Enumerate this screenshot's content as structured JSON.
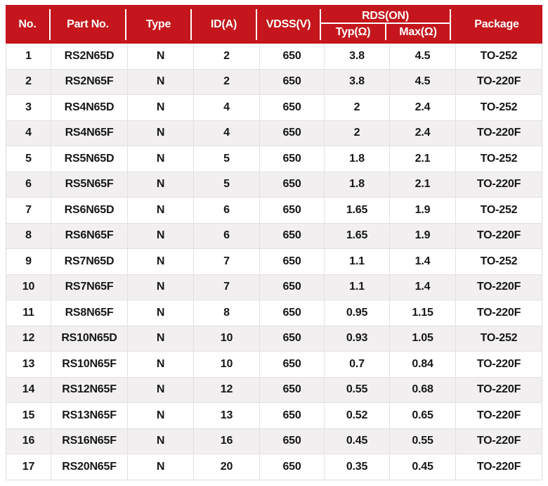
{
  "table": {
    "headers": {
      "no": "No.",
      "part_no": "Part No.",
      "type": "Type",
      "id_a": "ID(A)",
      "vdss_v": "VDSS(V)",
      "rds_on": "RDS(ON)",
      "typ_ohm": "Typ(Ω)",
      "max_ohm": "Max(Ω)",
      "package": "Package"
    },
    "rows": [
      [
        "1",
        "RS2N65D",
        "N",
        "2",
        "650",
        "3.8",
        "4.5",
        "TO-252"
      ],
      [
        "2",
        "RS2N65F",
        "N",
        "2",
        "650",
        "3.8",
        "4.5",
        "TO-220F"
      ],
      [
        "3",
        "RS4N65D",
        "N",
        "4",
        "650",
        "2",
        "2.4",
        "TO-252"
      ],
      [
        "4",
        "RS4N65F",
        "N",
        "4",
        "650",
        "2",
        "2.4",
        "TO-220F"
      ],
      [
        "5",
        "RS5N65D",
        "N",
        "5",
        "650",
        "1.8",
        "2.1",
        "TO-252"
      ],
      [
        "6",
        "RS5N65F",
        "N",
        "5",
        "650",
        "1.8",
        "2.1",
        "TO-220F"
      ],
      [
        "7",
        "RS6N65D",
        "N",
        "6",
        "650",
        "1.65",
        "1.9",
        "TO-252"
      ],
      [
        "8",
        "RS6N65F",
        "N",
        "6",
        "650",
        "1.65",
        "1.9",
        "TO-220F"
      ],
      [
        "9",
        "RS7N65D",
        "N",
        "7",
        "650",
        "1.1",
        "1.4",
        "TO-252"
      ],
      [
        "10",
        "RS7N65F",
        "N",
        "7",
        "650",
        "1.1",
        "1.4",
        "TO-220F"
      ],
      [
        "11",
        "RS8N65F",
        "N",
        "8",
        "650",
        "0.95",
        "1.15",
        "TO-220F"
      ],
      [
        "12",
        "RS10N65D",
        "N",
        "10",
        "650",
        "0.93",
        "1.05",
        "TO-252"
      ],
      [
        "13",
        "RS10N65F",
        "N",
        "10",
        "650",
        "0.7",
        "0.84",
        "TO-220F"
      ],
      [
        "14",
        "RS12N65F",
        "N",
        "12",
        "650",
        "0.55",
        "0.68",
        "TO-220F"
      ],
      [
        "15",
        "RS13N65F",
        "N",
        "13",
        "650",
        "0.52",
        "0.65",
        "TO-220F"
      ],
      [
        "16",
        "RS16N65F",
        "N",
        "16",
        "650",
        "0.45",
        "0.55",
        "TO-220F"
      ],
      [
        "17",
        "RS20N65F",
        "N",
        "20",
        "650",
        "0.35",
        "0.45",
        "TO-220F"
      ]
    ],
    "colors": {
      "header_bg": "#c4161c",
      "header_text": "#ffffff",
      "row_bg": "#ffffff",
      "row_alt_bg": "#f1efef",
      "cell_border": "#e3e0e0",
      "body_text": "#161616"
    }
  }
}
